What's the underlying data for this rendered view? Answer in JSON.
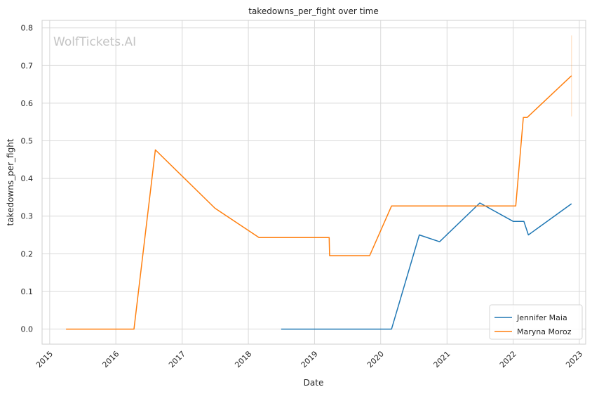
{
  "chart_data": {
    "type": "line",
    "title": "takedowns_per_fight over time",
    "xlabel": "Date",
    "ylabel": "takedowns_per_fight",
    "watermark": "WolfTickets.AI",
    "x_ticks": [
      "2015",
      "2016",
      "2017",
      "2018",
      "2019",
      "2020",
      "2021",
      "2022",
      "2023"
    ],
    "y_ticks": [
      "0.0",
      "0.1",
      "0.2",
      "0.3",
      "0.4",
      "0.5",
      "0.6",
      "0.7",
      "0.8"
    ],
    "xlim": [
      "2014-11-20",
      "2023-02-05"
    ],
    "ylim": [
      -0.04,
      0.82
    ],
    "grid": true,
    "legend_position": "bottom-right",
    "series": [
      {
        "name": "Jennifer Maia",
        "color": "#1f77b4",
        "points": [
          {
            "x": "2018-07-01",
            "y": 0.0
          },
          {
            "x": "2020-03-01",
            "y": 0.0
          },
          {
            "x": "2020-08-01",
            "y": 0.25
          },
          {
            "x": "2020-11-21",
            "y": 0.232
          },
          {
            "x": "2021-07-01",
            "y": 0.335
          },
          {
            "x": "2022-01-01",
            "y": 0.286
          },
          {
            "x": "2022-03-01",
            "y": 0.286
          },
          {
            "x": "2022-03-26",
            "y": 0.25
          },
          {
            "x": "2022-11-19",
            "y": 0.333
          }
        ]
      },
      {
        "name": "Maryna Moroz",
        "color": "#ff7f0e",
        "points": [
          {
            "x": "2015-04-01",
            "y": 0.0
          },
          {
            "x": "2016-04-10",
            "y": 0.0
          },
          {
            "x": "2016-08-06",
            "y": 0.476
          },
          {
            "x": "2017-07-01",
            "y": 0.321
          },
          {
            "x": "2018-03-01",
            "y": 0.243
          },
          {
            "x": "2019-03-23",
            "y": 0.243
          },
          {
            "x": "2019-03-25",
            "y": 0.195
          },
          {
            "x": "2019-11-01",
            "y": 0.195
          },
          {
            "x": "2020-03-01",
            "y": 0.327
          },
          {
            "x": "2022-01-15",
            "y": 0.327
          },
          {
            "x": "2022-02-26",
            "y": 0.562
          },
          {
            "x": "2022-03-19",
            "y": 0.562
          },
          {
            "x": "2022-11-19",
            "y": 0.673
          }
        ],
        "error_bar": {
          "x": "2022-11-19",
          "low": 0.565,
          "high": 0.78
        }
      }
    ]
  }
}
